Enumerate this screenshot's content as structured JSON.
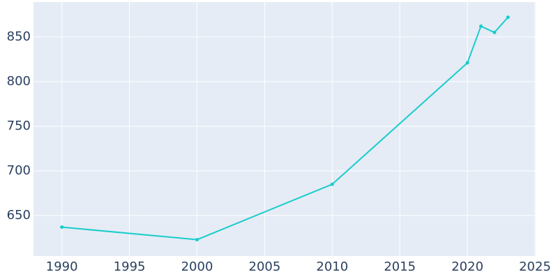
{
  "chart_data": {
    "type": "line",
    "x": [
      1990,
      2000,
      2010,
      2020,
      2021,
      2022,
      2023
    ],
    "series": [
      {
        "color": "#19cccc",
        "values": [
          637,
          623,
          685,
          821,
          862,
          855,
          872
        ]
      }
    ],
    "xlim": [
      1987.9,
      2025.05
    ],
    "xticks": [
      1990,
      1995,
      2000,
      2005,
      2010,
      2015,
      2020,
      2025
    ],
    "ylim": [
      604.7,
      889
    ],
    "yticks": [
      650,
      700,
      750,
      800,
      850
    ],
    "grid": true,
    "background": "#e5ecf6"
  }
}
